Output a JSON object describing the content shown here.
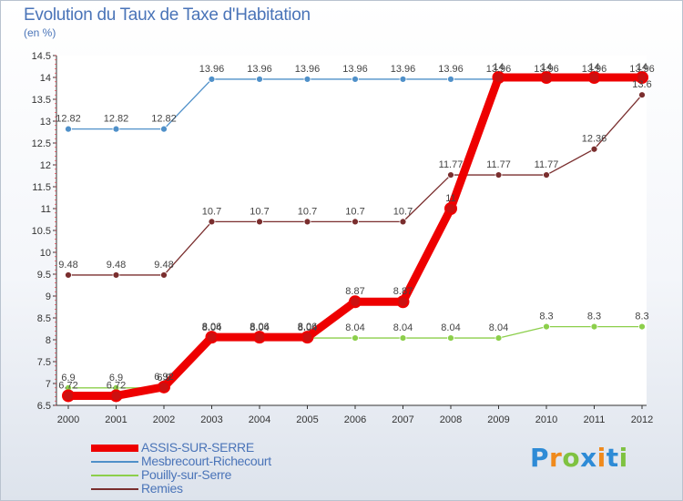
{
  "header": {
    "title": "Evolution du Taux de Taxe d'Habitation",
    "subtitle": "(en %)"
  },
  "logo": {
    "letters": [
      "P",
      "r",
      "o",
      "x",
      "i",
      "t",
      "i"
    ],
    "colors": [
      "#2e8bd6",
      "#f08a1c",
      "#7fc241",
      "#2e8bd6",
      "#f08a1c",
      "#2e8bd6",
      "#7fc241"
    ]
  },
  "chart_data": {
    "type": "line",
    "title": "Evolution du Taux de Taxe d'Habitation",
    "subtitle": "(en %)",
    "x": [
      "2000",
      "2001",
      "2002",
      "2003",
      "2004",
      "2005",
      "2006",
      "2007",
      "2008",
      "2009",
      "2010",
      "2011",
      "2012"
    ],
    "ylim": [
      6.5,
      14.5
    ],
    "yticks": [
      "6.5",
      "7",
      "7.5",
      "8",
      "8.5",
      "9",
      "9.5",
      "10",
      "10.5",
      "11",
      "11.5",
      "12",
      "12.5",
      "13",
      "13.5",
      "14",
      "14.5"
    ],
    "grid": false,
    "legend_position": "bottom-left",
    "series": [
      {
        "name": "ASSIS-SUR-SERRE",
        "color": "#ee0000",
        "values": [
          6.72,
          6.72,
          6.92,
          8.06,
          8.06,
          8.06,
          8.87,
          8.87,
          11,
          14,
          14,
          14,
          14
        ],
        "labels": [
          "6.72",
          "6.72",
          "6.92",
          "8.06",
          "8.06",
          "8.06",
          "8.87",
          "8.87",
          "11",
          "14",
          "14",
          "14",
          "14"
        ]
      },
      {
        "name": "Mesbrecourt-Richecourt",
        "color": "#4f90c9",
        "values": [
          12.82,
          12.82,
          12.82,
          13.96,
          13.96,
          13.96,
          13.96,
          13.96,
          13.96,
          13.96,
          13.96,
          13.96,
          13.96
        ],
        "labels": [
          "12.82",
          "12.82",
          "12.82",
          "13.96",
          "13.96",
          "13.96",
          "13.96",
          "13.96",
          "13.96",
          "13.96",
          "13.96",
          "13.96",
          "13.96"
        ]
      },
      {
        "name": "Pouilly-sur-Serre",
        "color": "#8ccf4b",
        "values": [
          6.9,
          6.9,
          6.9,
          8.04,
          8.04,
          8.04,
          8.04,
          8.04,
          8.04,
          8.04,
          8.3,
          8.3,
          8.3
        ],
        "labels": [
          "6.9",
          "6.9",
          "6.9",
          "8.04",
          "8.04",
          "8.04",
          "8.04",
          "8.04",
          "8.04",
          "8.04",
          "8.3",
          "8.3",
          "8.3"
        ]
      },
      {
        "name": "Remies",
        "color": "#7a2e2e",
        "values": [
          9.48,
          9.48,
          9.48,
          10.7,
          10.7,
          10.7,
          10.7,
          10.7,
          11.77,
          11.77,
          11.77,
          12.36,
          13.6
        ],
        "labels": [
          "9.48",
          "9.48",
          "9.48",
          "10.7",
          "10.7",
          "10.7",
          "10.7",
          "10.7",
          "11.77",
          "11.77",
          "11.77",
          "12.36",
          "13.6"
        ]
      }
    ]
  }
}
